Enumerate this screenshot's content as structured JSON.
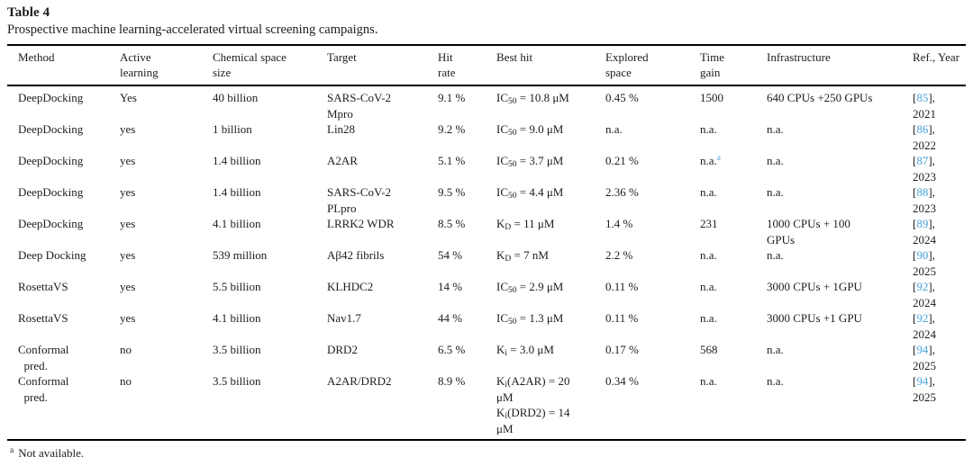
{
  "title": "Table 4",
  "caption": "Prospective machine learning-accelerated virtual screening campaigns.",
  "footnote": {
    "marker": "a",
    "text": "Not available."
  },
  "colors": {
    "ref_link": "#4aa2d9",
    "text": "#1d1d1d",
    "rule": "#000000",
    "background": "#ffffff"
  },
  "table": {
    "columns": [
      {
        "key": "method",
        "label": "Method"
      },
      {
        "key": "active_learning",
        "label": "Active\nlearning"
      },
      {
        "key": "chemical_space_size",
        "label": "Chemical space\nsize"
      },
      {
        "key": "target",
        "label": "Target"
      },
      {
        "key": "hit_rate",
        "label": "Hit\nrate"
      },
      {
        "key": "best_hit",
        "label": "Best hit"
      },
      {
        "key": "explored_space",
        "label": "Explored\nspace"
      },
      {
        "key": "time_gain",
        "label": "Time\ngain"
      },
      {
        "key": "infrastructure",
        "label": "Infrastructure"
      },
      {
        "key": "ref_year",
        "label": "Ref., Year"
      }
    ],
    "rows": [
      {
        "method": "DeepDocking",
        "active_learning": "Yes",
        "chemical_space_size": "40 billion",
        "target": "SARS-CoV-2\nMpro",
        "hit_rate": "9.1 %",
        "best_hit": "IC_{50} = 10.8 μM",
        "explored_space": "0.45 %",
        "time_gain": "1500",
        "infrastructure": "640 CPUs +250 GPUs",
        "ref": "85",
        "year": "2021"
      },
      {
        "method": "DeepDocking",
        "active_learning": "yes",
        "chemical_space_size": "1 billion",
        "target": "Lin28",
        "hit_rate": "9.2 %",
        "best_hit": "IC_{50} = 9.0 μM",
        "explored_space": "n.a.",
        "time_gain": "n.a.",
        "infrastructure": "n.a.",
        "ref": "86",
        "year": "2022"
      },
      {
        "method": "DeepDocking",
        "active_learning": "yes",
        "chemical_space_size": "1.4 billion",
        "target": "A2AR",
        "hit_rate": "5.1 %",
        "best_hit": "IC_{50} = 3.7 μM",
        "explored_space": "0.21 %",
        "time_gain": "n.a.^{a}",
        "infrastructure": "n.a.",
        "ref": "87",
        "year": "2023"
      },
      {
        "method": "DeepDocking",
        "active_learning": "yes",
        "chemical_space_size": "1.4 billion",
        "target": "SARS-CoV-2\nPLpro",
        "hit_rate": "9.5 %",
        "best_hit": "IC_{50} = 4.4 μM",
        "explored_space": "2.36 %",
        "time_gain": "n.a.",
        "infrastructure": "n.a.",
        "ref": "88",
        "year": "2023"
      },
      {
        "method": "DeepDocking",
        "active_learning": "yes",
        "chemical_space_size": "4.1 billion",
        "target": "LRRK2 WDR",
        "hit_rate": "8.5 %",
        "best_hit": "K_{D} = 11 μM",
        "explored_space": "1.4 %",
        "time_gain": "231",
        "infrastructure": "1000 CPUs + 100\nGPUs",
        "ref": "89",
        "year": "2024"
      },
      {
        "method": "Deep Docking",
        "active_learning": "yes",
        "chemical_space_size": "539 million",
        "target": "Aβ42 fibrils",
        "hit_rate": "54 %",
        "best_hit": "K_{D} = 7 nM",
        "explored_space": "2.2 %",
        "time_gain": "n.a.",
        "infrastructure": "n.a.",
        "ref": "90",
        "year": "2025"
      },
      {
        "method": "RosettaVS",
        "active_learning": "yes",
        "chemical_space_size": "5.5 billion",
        "target": "KLHDC2",
        "hit_rate": "14 %",
        "best_hit": "IC_{50} = 2.9 μM",
        "explored_space": "0.11 %",
        "time_gain": "n.a.",
        "infrastructure": "3000 CPUs + 1GPU",
        "ref": "92",
        "year": "2024"
      },
      {
        "method": "RosettaVS",
        "active_learning": "yes",
        "chemical_space_size": "4.1 billion",
        "target": "Nav1.7",
        "hit_rate": "44 %",
        "best_hit": "IC_{50} = 1.3 μM",
        "explored_space": "0.11 %",
        "time_gain": "n.a.",
        "infrastructure": "3000 CPUs +1 GPU",
        "ref": "92",
        "year": "2024"
      },
      {
        "method": "Conformal\n  pred.",
        "active_learning": "no",
        "chemical_space_size": "3.5 billion",
        "target": "DRD2",
        "hit_rate": "6.5 %",
        "best_hit": "K_{i} = 3.0 μM",
        "explored_space": "0.17 %",
        "time_gain": "568",
        "infrastructure": "n.a.",
        "ref": "94",
        "year": "2025"
      },
      {
        "method": "Conformal\n  pred.",
        "active_learning": "no",
        "chemical_space_size": "3.5 billion",
        "target": "A2AR/DRD2",
        "hit_rate": "8.9 %",
        "best_hit": "K_{i}(A2AR) = 20\nμM\nK_{i}(DRD2) = 14\nμM",
        "explored_space": "0.34 %",
        "time_gain": "n.a.",
        "infrastructure": "n.a.",
        "ref": "94",
        "year": "2025"
      }
    ]
  }
}
